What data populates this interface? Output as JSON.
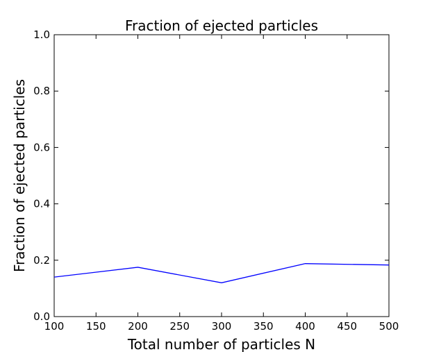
{
  "chart_data": {
    "type": "line",
    "title": "Fraction of ejected particles",
    "xlabel": "Total number of particles N",
    "ylabel": "Fraction of ejected particles",
    "xlim": [
      100,
      500
    ],
    "ylim": [
      0.0,
      1.0
    ],
    "xticks": [
      "100",
      "150",
      "200",
      "250",
      "300",
      "350",
      "400",
      "450",
      "500"
    ],
    "yticks": [
      "0.0",
      "0.2",
      "0.4",
      "0.6",
      "0.8",
      "1.0"
    ],
    "grid": false,
    "series": [
      {
        "color": "#0000ff",
        "x": [
          100,
          200,
          300,
          400,
          500
        ],
        "y": [
          0.14,
          0.175,
          0.12,
          0.188,
          0.183
        ]
      }
    ]
  }
}
